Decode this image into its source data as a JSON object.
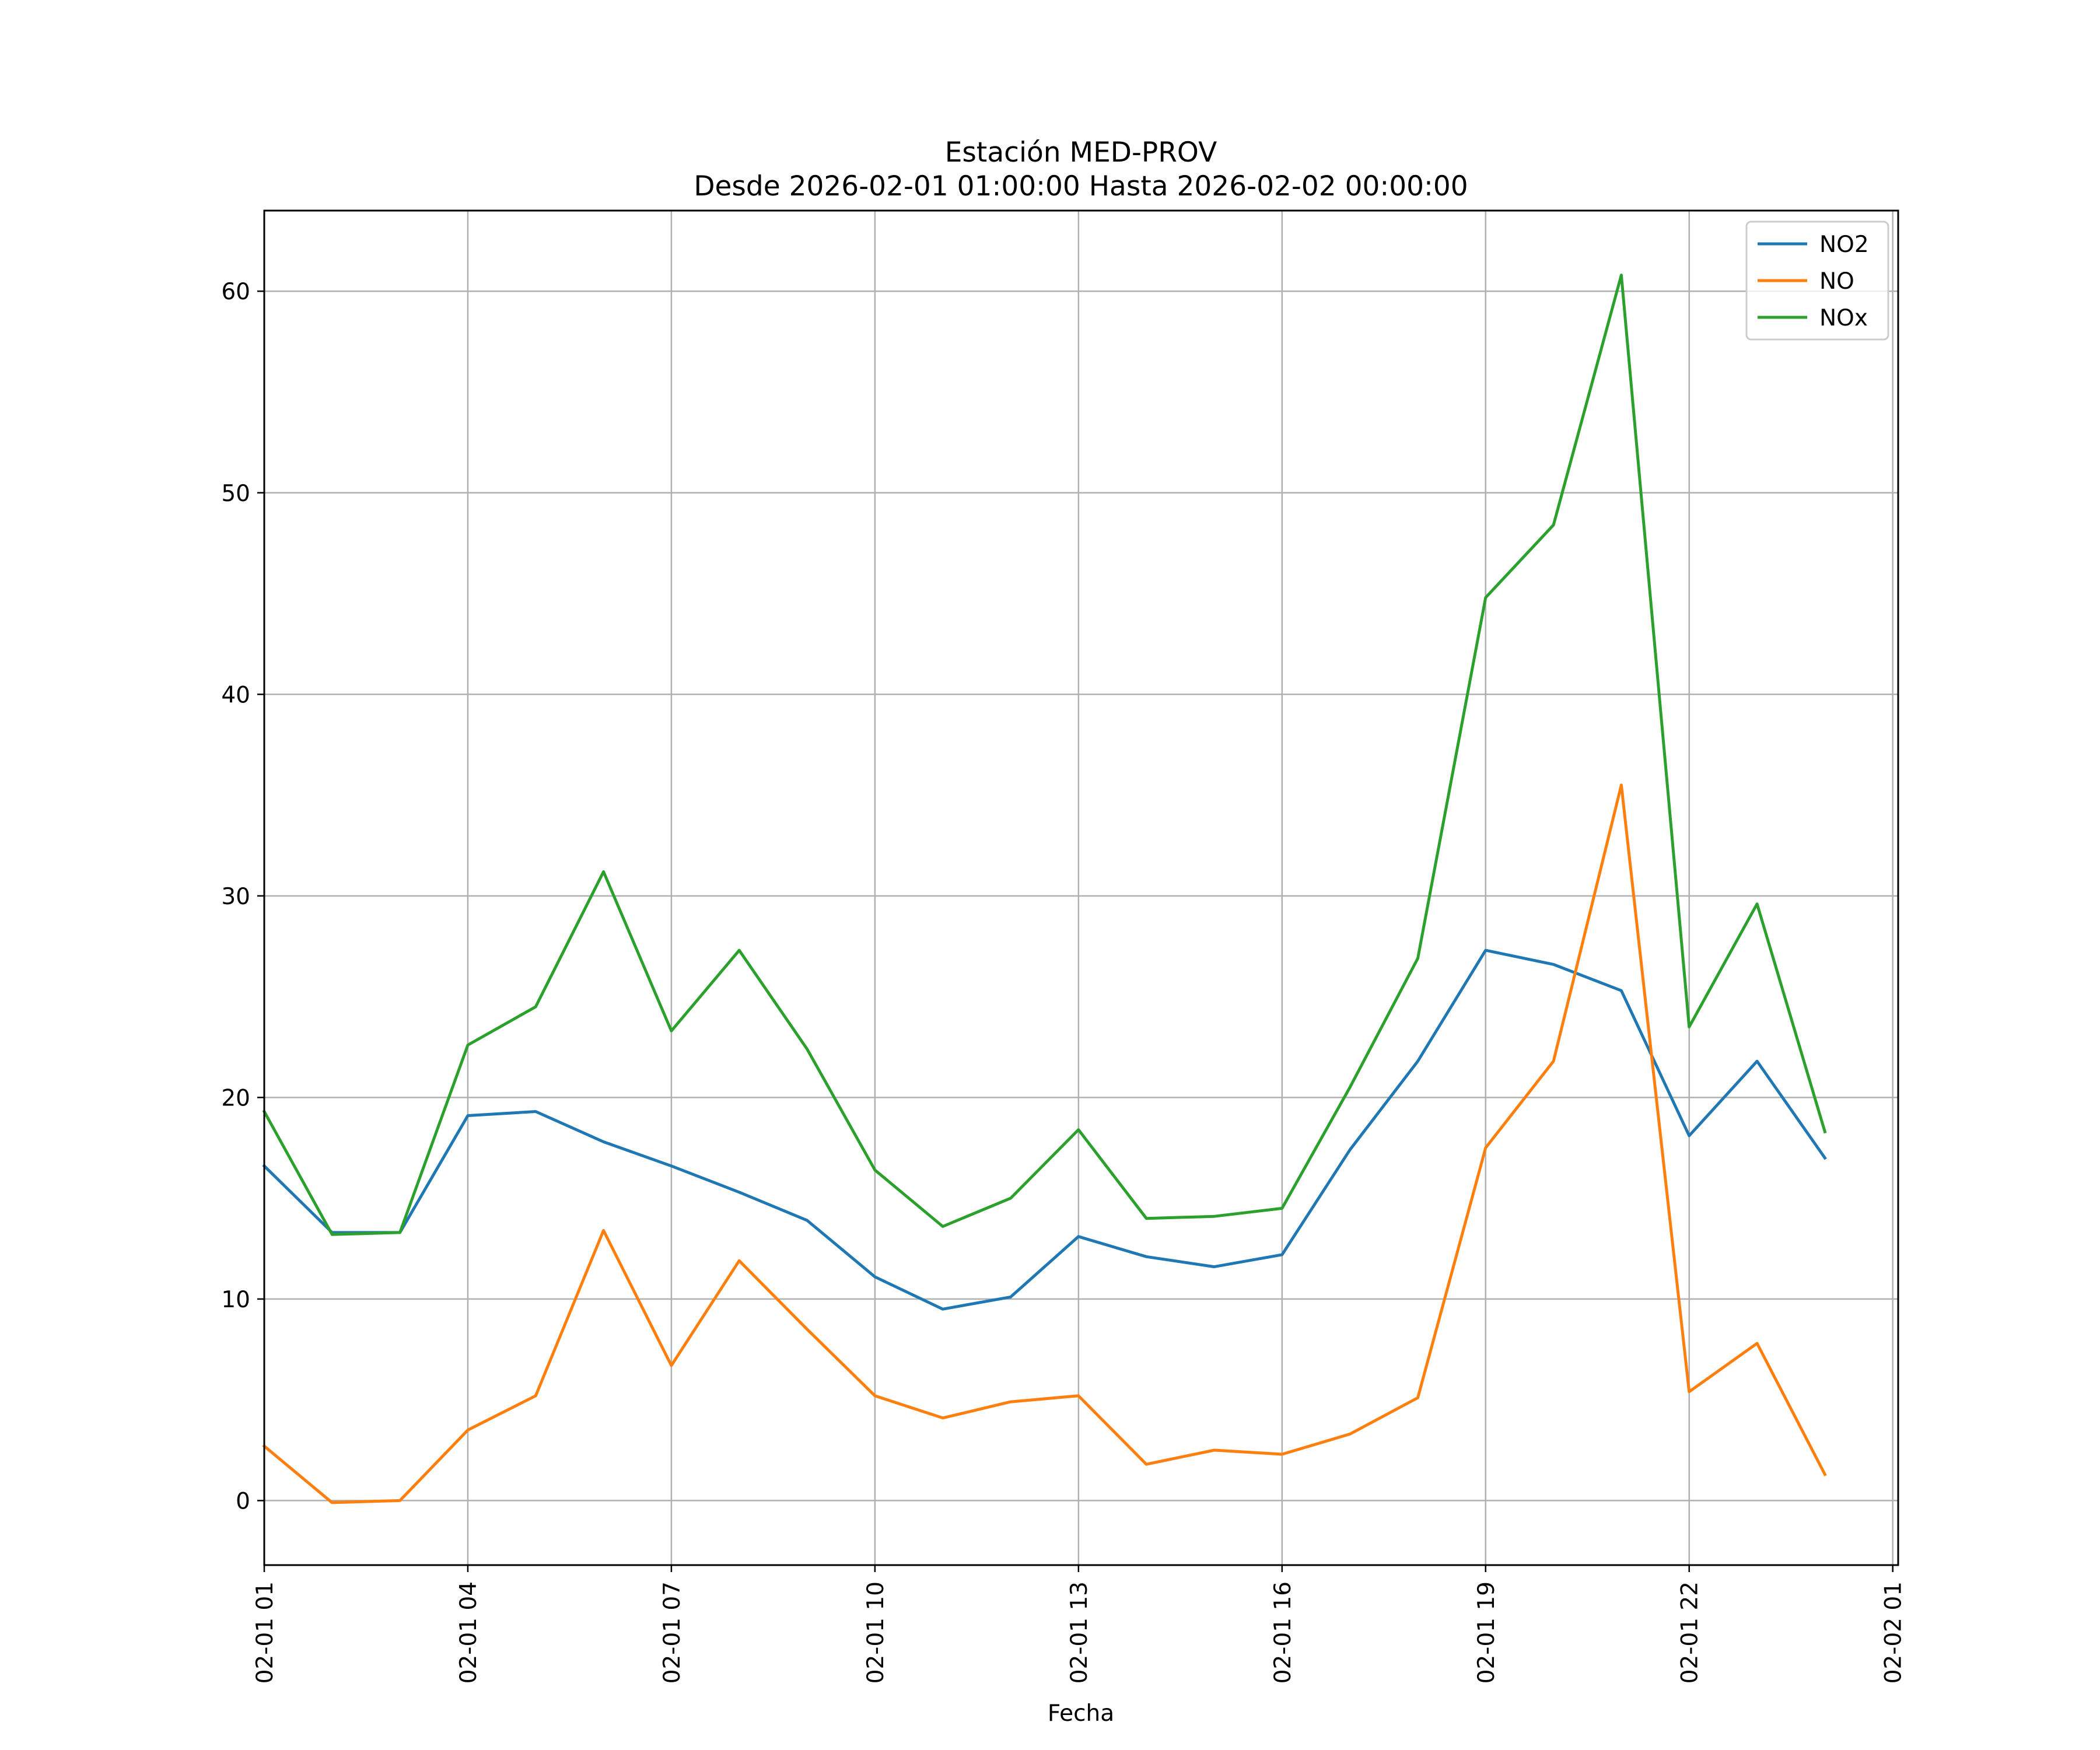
{
  "chart_data": {
    "type": "line",
    "title": "Estación MED-PROV",
    "subtitle": "Desde 2026-02-01 01:00:00 Hasta 2026-02-02 00:00:00",
    "xlabel": "Fecha",
    "ylabel": "",
    "x": [
      "02-01 01",
      "02-01 02",
      "02-01 03",
      "02-01 04",
      "02-01 05",
      "02-01 06",
      "02-01 07",
      "02-01 08",
      "02-01 09",
      "02-01 10",
      "02-01 11",
      "02-01 12",
      "02-01 13",
      "02-01 14",
      "02-01 15",
      "02-01 16",
      "02-01 17",
      "02-01 18",
      "02-01 19",
      "02-01 20",
      "02-01 21",
      "02-01 22",
      "02-01 23",
      "02-02 00"
    ],
    "x_ticks": [
      "02-01 01",
      "02-01 04",
      "02-01 07",
      "02-01 10",
      "02-01 13",
      "02-01 16",
      "02-01 19",
      "02-01 22",
      "02-02 01"
    ],
    "xlim": [
      0.0,
      24.08
    ],
    "ylim": [
      -3.2,
      64
    ],
    "y_ticks": [
      0,
      10,
      20,
      30,
      40,
      50,
      60
    ],
    "grid": true,
    "legend_position": "top-right",
    "series": [
      {
        "name": "NO2",
        "color": "#1f77b4",
        "values": [
          16.6,
          13.3,
          13.3,
          19.1,
          19.3,
          17.8,
          16.6,
          15.3,
          13.9,
          11.1,
          9.5,
          10.1,
          13.1,
          12.1,
          11.6,
          12.2,
          17.4,
          21.8,
          27.3,
          26.6,
          25.3,
          18.1,
          21.8,
          17.0
        ]
      },
      {
        "name": "NO",
        "color": "#ff7f0e",
        "values": [
          2.7,
          -0.1,
          0.0,
          3.5,
          5.2,
          13.4,
          6.7,
          11.9,
          8.5,
          5.2,
          4.1,
          4.9,
          5.2,
          1.8,
          2.5,
          2.3,
          3.3,
          5.1,
          17.5,
          21.8,
          35.5,
          5.4,
          7.8,
          1.3
        ]
      },
      {
        "name": "NOx",
        "color": "#2ca02c",
        "values": [
          19.3,
          13.2,
          13.3,
          22.6,
          24.5,
          31.2,
          23.3,
          27.3,
          22.4,
          16.4,
          13.6,
          15.0,
          18.4,
          14.0,
          14.1,
          14.5,
          20.5,
          26.9,
          44.8,
          48.4,
          60.8,
          23.5,
          29.6,
          18.3
        ]
      }
    ]
  }
}
